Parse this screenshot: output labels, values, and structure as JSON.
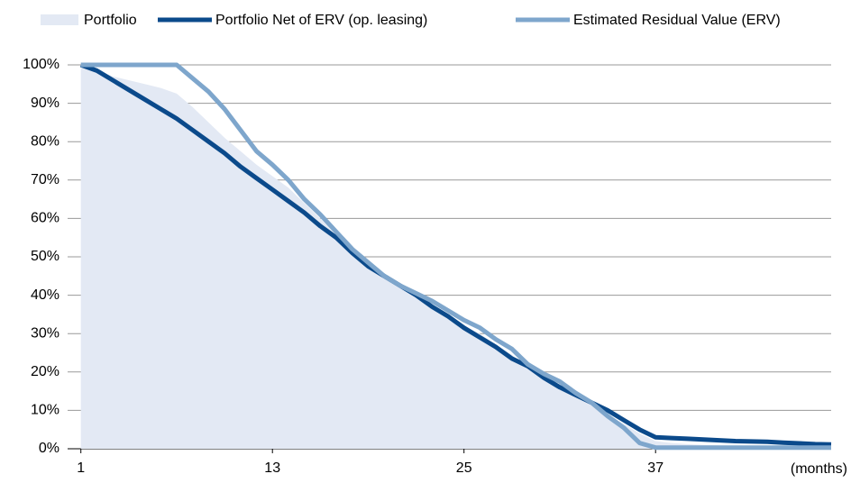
{
  "chart_data": {
    "type": "line",
    "x": [
      1,
      2,
      3,
      4,
      5,
      6,
      7,
      8,
      9,
      10,
      11,
      12,
      13,
      14,
      15,
      16,
      17,
      18,
      19,
      20,
      21,
      22,
      23,
      24,
      25,
      26,
      27,
      28,
      29,
      30,
      31,
      32,
      33,
      34,
      35,
      36,
      37,
      38,
      39,
      40,
      41,
      42,
      43,
      44,
      45,
      46,
      47,
      48
    ],
    "xlabel": "(months)",
    "xlim": [
      0,
      48
    ],
    "xticks": [
      1,
      13,
      25,
      37
    ],
    "ylim": [
      0,
      100
    ],
    "yticks": [
      {
        "value": 0,
        "label": "0%"
      },
      {
        "value": 10,
        "label": "10%"
      },
      {
        "value": 20,
        "label": "20%"
      },
      {
        "value": 30,
        "label": "30%"
      },
      {
        "value": 40,
        "label": "40%"
      },
      {
        "value": 50,
        "label": "50%"
      },
      {
        "value": 60,
        "label": "60%"
      },
      {
        "value": 70,
        "label": "70%"
      },
      {
        "value": 80,
        "label": "80%"
      },
      {
        "value": 90,
        "label": "90%"
      },
      {
        "value": 100,
        "label": "100%"
      }
    ],
    "grid": true,
    "series": [
      {
        "name": "Portfolio",
        "color": "#e3e9f4",
        "fill": true,
        "values": [
          100,
          98.5,
          97,
          96,
          95,
          94,
          92.5,
          89,
          85,
          81,
          77.5,
          74,
          71,
          68,
          64,
          60,
          55.5,
          51,
          48,
          44.5,
          42,
          39.5,
          37,
          34.5,
          32,
          30,
          27,
          24.5,
          21,
          18.5,
          16.5,
          14,
          11.5,
          9,
          6.5,
          4,
          2,
          1.5,
          1.2,
          1,
          0.9,
          0.8,
          0.7,
          0.6,
          0.5,
          0.5,
          0.5,
          0.5
        ]
      },
      {
        "name": "Portfolio Net of ERV (op. leasing)",
        "color": "#0b4a8b",
        "fill": false,
        "values": [
          100,
          98.5,
          96,
          93.5,
          91,
          88.5,
          86,
          83,
          80,
          77,
          73.5,
          70.5,
          67.5,
          64.5,
          61.5,
          58,
          55,
          51,
          47.5,
          45,
          42.5,
          40,
          37,
          34.5,
          31.5,
          29,
          26.5,
          23.5,
          21.5,
          18.5,
          16,
          14,
          12,
          10,
          7.5,
          5,
          3,
          2.8,
          2.6,
          2.4,
          2.2,
          2,
          1.9,
          1.8,
          1.6,
          1.4,
          1.2,
          1.1
        ]
      },
      {
        "name": "Estimated Residual Value (ERV)",
        "color": "#7ea6cc",
        "fill": false,
        "values": [
          100,
          100,
          100,
          100,
          100,
          100,
          100,
          96.5,
          93,
          88.5,
          83,
          77.5,
          74,
          70,
          65,
          61,
          56.5,
          52,
          48.5,
          45,
          42.5,
          40.5,
          38.5,
          36,
          33.5,
          31.5,
          28.5,
          26,
          22,
          19.5,
          17.5,
          14.5,
          12,
          8.5,
          5.5,
          1.5,
          0.3,
          0.3,
          0.3,
          0.3,
          0.3,
          0.3,
          0.3,
          0.3,
          0.3,
          0.3,
          0.3,
          0.3
        ]
      }
    ]
  }
}
